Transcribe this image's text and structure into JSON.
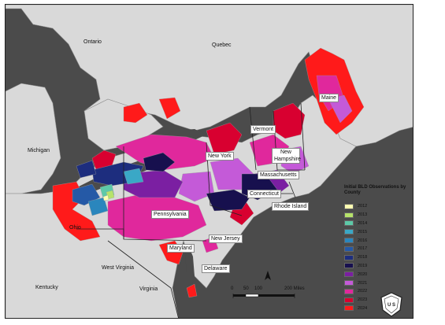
{
  "legend": {
    "title": "Initial BLD Observations by County",
    "items": [
      {
        "year": "2012",
        "color": "#ffffb2"
      },
      {
        "year": "2013",
        "color": "#b6e36a"
      },
      {
        "year": "2014",
        "color": "#5dc9a8"
      },
      {
        "year": "2015",
        "color": "#3aa8c6"
      },
      {
        "year": "2016",
        "color": "#2a86bd"
      },
      {
        "year": "2017",
        "color": "#2559a6"
      },
      {
        "year": "2018",
        "color": "#1d2d7e"
      },
      {
        "year": "2019",
        "color": "#17104e"
      },
      {
        "year": "2020",
        "color": "#7b1fa2"
      },
      {
        "year": "2021",
        "color": "#c45ad8"
      },
      {
        "year": "2022",
        "color": "#e0289c"
      },
      {
        "year": "2023",
        "color": "#d80030"
      },
      {
        "year": "2024",
        "color": "#ff1a1a"
      }
    ]
  },
  "labels": {
    "ontario": "Ontario",
    "quebec": "Quebec",
    "michigan": "Michigan",
    "ohio": "Ohio",
    "kentucky": "Kentucky",
    "west_virginia": "West Virginia",
    "virginia": "Virginia",
    "maine": "Maine",
    "vermont": "Vermont",
    "new_hampshire": "New Hampshire",
    "new_york": "New York",
    "massachusetts": "Massachusetts",
    "connecticut": "Connecticut",
    "rhode_island": "Rhode Island",
    "pennsylvania": "Pennsylvania",
    "new_jersey": "New Jersey",
    "maryland": "Maryland",
    "delaware": "Delaware"
  },
  "scale": {
    "ticks": [
      "0",
      "50",
      "100",
      "200 Miles"
    ]
  },
  "colors": {
    "water": "#4b4b4b",
    "land": "#d9d9d9",
    "land_border": "#8a8a8a"
  },
  "icons": {
    "north_arrow": "north-arrow-icon",
    "logo": "usfs-shield-icon"
  }
}
